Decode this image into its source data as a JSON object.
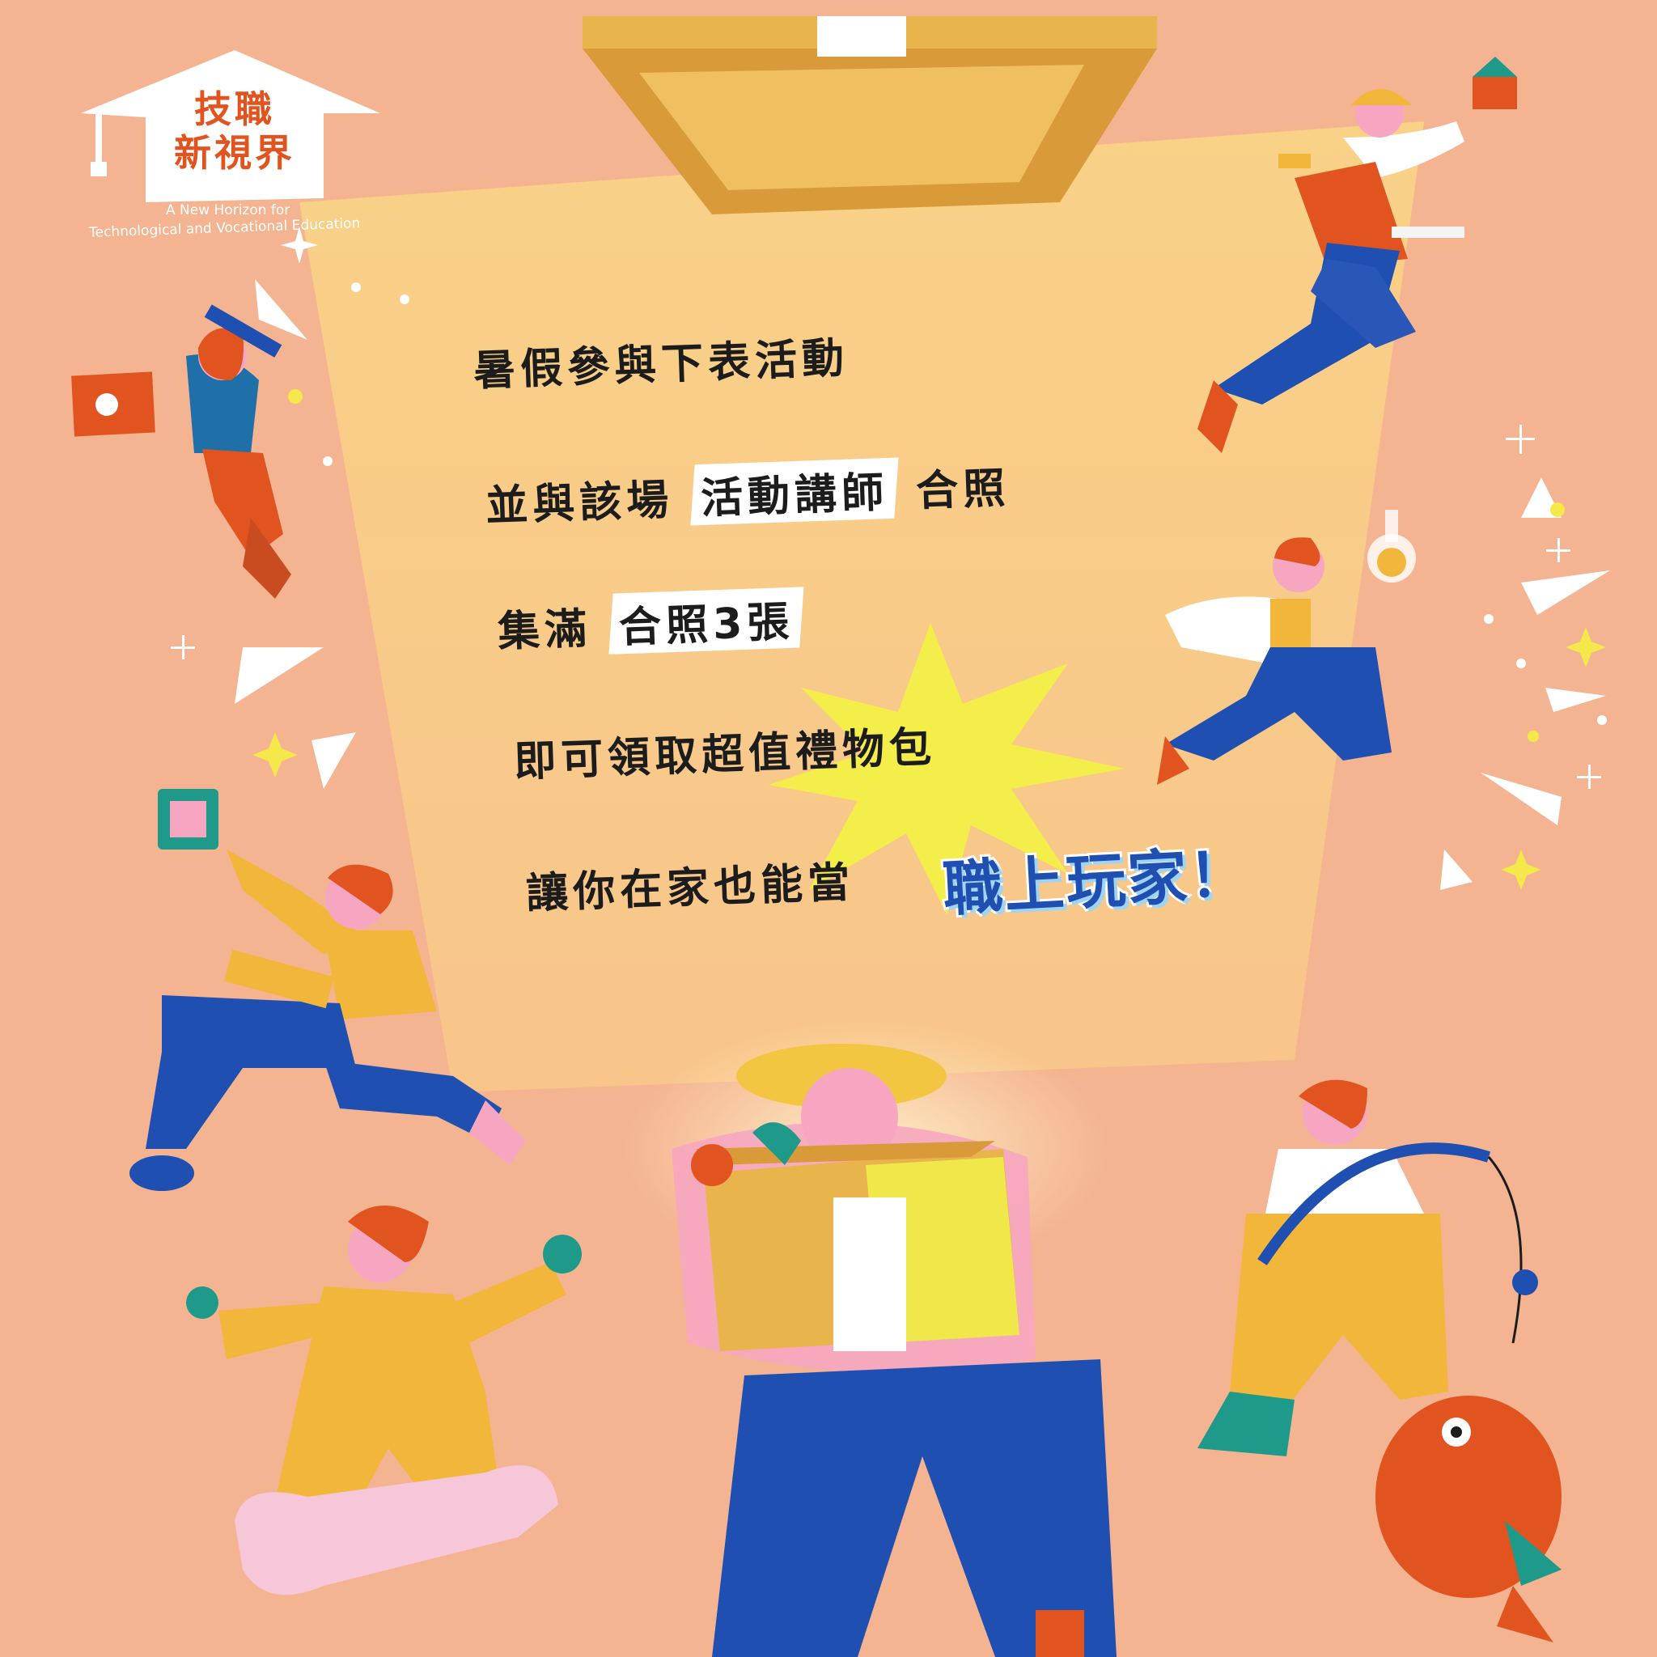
{
  "logo": {
    "title_line1": "技職",
    "title_line2": "新視界",
    "subtitle_line1": "A New Horizon for",
    "subtitle_line2": "Technological and Vocational Education"
  },
  "message": {
    "line1": "暑假參與下表活動",
    "line2_prefix": "並與該場",
    "line2_highlight": "活動講師",
    "line2_suffix": "合照",
    "line3_prefix": "集滿",
    "line3_highlight": "合照3張",
    "line4": "即可領取超值禮物包",
    "line5_prefix": "讓你在家也能當",
    "line5_brand": "職上玩家！"
  },
  "colors": {
    "background": "#f4b491",
    "light_beam": "#f8c98a",
    "box": "#e9b44c",
    "accent_orange": "#e2541f",
    "accent_blue": "#1f4fb0",
    "accent_yellow": "#f4e84a"
  },
  "illustrations": [
    "woman-with-laptop-and-pencil",
    "construction-worker-with-house",
    "scientist-with-flask",
    "engineer-with-chip-and-circuit-board",
    "farmer-with-vegetable-box",
    "fisherman-with-fish",
    "mechanic-on-wrench"
  ]
}
